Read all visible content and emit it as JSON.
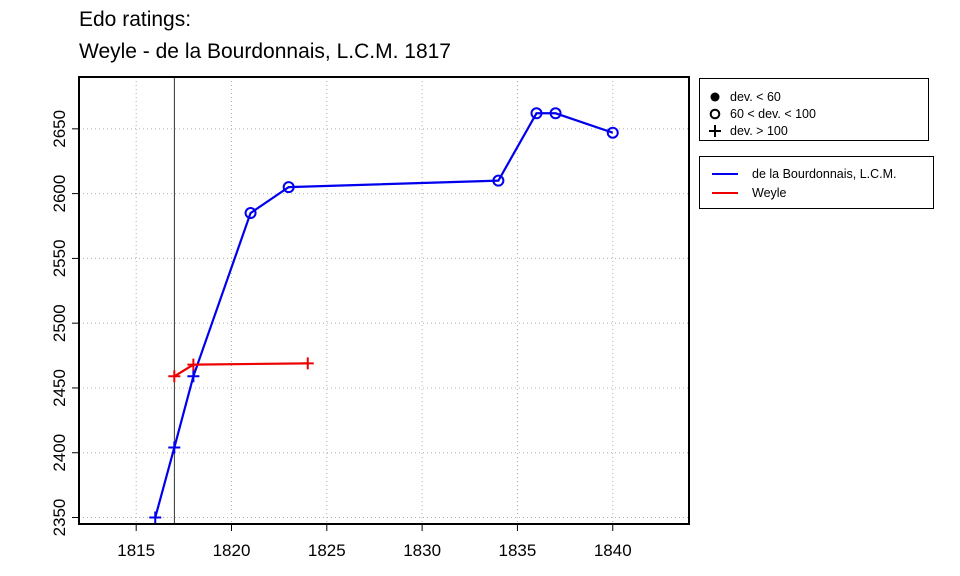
{
  "title": {
    "line1": "Edo ratings:",
    "line2": "Weyle - de la Bourdonnais, L.C.M. 1817"
  },
  "chart_data": {
    "type": "line",
    "title": "Edo ratings:\nWeyle - de la Bourdonnais, L.C.M. 1817",
    "xlabel": "",
    "ylabel": "",
    "xlim": [
      1812,
      1844
    ],
    "ylim": [
      2345,
      2690
    ],
    "x_ticks": [
      1815,
      1820,
      1825,
      1830,
      1835,
      1840
    ],
    "y_ticks": [
      2350,
      2400,
      2450,
      2500,
      2550,
      2600,
      2650
    ],
    "grid": true,
    "reference_line_x": 1817,
    "series": [
      {
        "name": "de la Bourdonnais, L.C.M.",
        "color": "#0000ee",
        "points": [
          {
            "x": 1816,
            "y": 2350,
            "marker": "plus"
          },
          {
            "x": 1817,
            "y": 2404,
            "marker": "plus"
          },
          {
            "x": 1818,
            "y": 2459,
            "marker": "plus"
          },
          {
            "x": 1821,
            "y": 2585,
            "marker": "circle"
          },
          {
            "x": 1823,
            "y": 2605,
            "marker": "circle"
          },
          {
            "x": 1834,
            "y": 2610,
            "marker": "circle"
          },
          {
            "x": 1836,
            "y": 2662,
            "marker": "circle"
          },
          {
            "x": 1837,
            "y": 2662,
            "marker": "circle"
          },
          {
            "x": 1840,
            "y": 2647,
            "marker": "circle"
          }
        ]
      },
      {
        "name": "Weyle",
        "color": "#ee0000",
        "points": [
          {
            "x": 1817,
            "y": 2459,
            "marker": "plus"
          },
          {
            "x": 1818,
            "y": 2468,
            "marker": "plus"
          },
          {
            "x": 1824,
            "y": 2469,
            "marker": "plus"
          }
        ]
      }
    ],
    "legend_deviation": [
      {
        "marker": "filled-circle",
        "label": "dev. < 60"
      },
      {
        "marker": "circle",
        "label": "60 < dev. < 100"
      },
      {
        "marker": "plus",
        "label": "dev. > 100"
      }
    ],
    "legend_placement": "right"
  }
}
